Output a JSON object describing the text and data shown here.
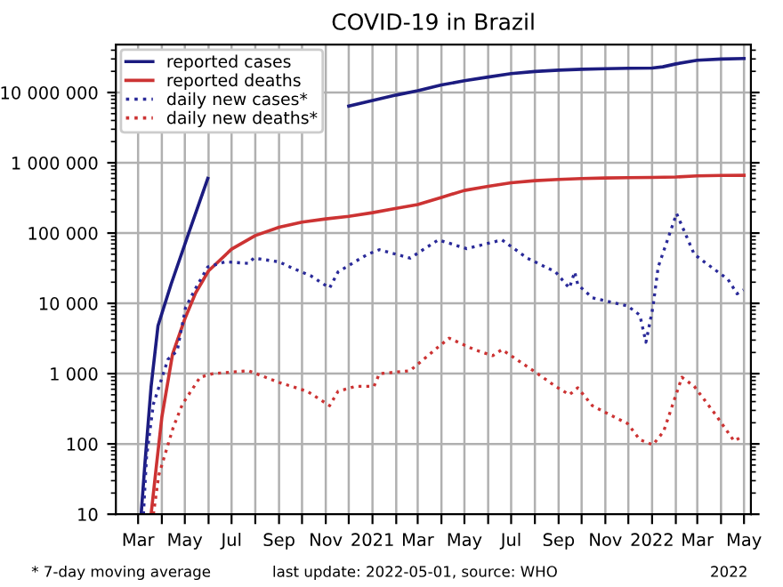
{
  "chart_data": {
    "type": "line",
    "title": "COVID-19 in Brazil",
    "log": "y",
    "grid": true,
    "legend": "top left",
    "xlim": [
      "2020-02-01",
      "2022-05-10"
    ],
    "xticks": [
      {
        "value": "2020-03-01",
        "label": "Mar"
      },
      {
        "value": "2020-04-01",
        "label": null
      },
      {
        "value": "2020-05-01",
        "label": "May"
      },
      {
        "value": "2020-06-01",
        "label": null
      },
      {
        "value": "2020-07-01",
        "label": "Jul"
      },
      {
        "value": "2020-08-01",
        "label": null
      },
      {
        "value": "2020-09-01",
        "label": "Sep"
      },
      {
        "value": "2020-10-01",
        "label": null
      },
      {
        "value": "2020-11-01",
        "label": "Nov"
      },
      {
        "value": "2020-12-01",
        "label": null
      },
      {
        "value": "2021-01-01",
        "label": "2021"
      },
      {
        "value": "2021-02-01",
        "label": null
      },
      {
        "value": "2021-03-01",
        "label": "Mar"
      },
      {
        "value": "2021-04-01",
        "label": null
      },
      {
        "value": "2021-05-01",
        "label": "May"
      },
      {
        "value": "2021-06-01",
        "label": null
      },
      {
        "value": "2021-07-01",
        "label": "Jul"
      },
      {
        "value": "2021-08-01",
        "label": null
      },
      {
        "value": "2021-09-01",
        "label": "Sep"
      },
      {
        "value": "2021-10-01",
        "label": null
      },
      {
        "value": "2021-11-01",
        "label": "Nov"
      },
      {
        "value": "2021-12-01",
        "label": null
      },
      {
        "value": "2022-01-01",
        "label": "2022"
      },
      {
        "value": "2022-02-01",
        "label": null
      },
      {
        "value": "2022-03-01",
        "label": "Mar"
      },
      {
        "value": "2022-04-01",
        "label": null
      },
      {
        "value": "2022-05-01",
        "label": "May"
      }
    ],
    "ylim": [
      10,
      48000000
    ],
    "yticks": [
      10,
      100,
      {
        "value": 1000,
        "label": "1 000"
      },
      {
        "value": 10000,
        "label": "10 000"
      },
      {
        "value": 100000,
        "label": "100 000"
      },
      {
        "value": 1000000,
        "label": "1 000 000"
      },
      {
        "value": 10000000,
        "label": "10 000 000"
      }
    ],
    "annotations": [
      "* 7-day moving average",
      "last update: 2022-05-01, source: WHO",
      "2022"
    ],
    "series": [
      {
        "name": "reported cases",
        "color": "#1c1c80",
        "line_style": "solid",
        "x": [
          "2020-03-05",
          "2020-03-10",
          "2020-03-18",
          "2020-03-27",
          "2020-04-13",
          "2020-05-07",
          "2020-05-31",
          "2020-07-01",
          "2020-08-01",
          "2020-09-01",
          "2020-10-01",
          "2020-11-01",
          "2020-12-01",
          "2021-01-01",
          "2021-02-01",
          "2021-03-01",
          "2021-04-01",
          "2021-05-01",
          "2021-06-01",
          "2021-07-01",
          "2021-08-01",
          "2021-09-01",
          "2021-10-01",
          "2021-11-01",
          "2021-12-01",
          "2022-01-01",
          "2022-01-15",
          "2022-02-01",
          "2022-03-01",
          "2022-04-01",
          "2022-05-01"
        ],
        "values": [
          10,
          54,
          660,
          4800,
          18600,
          107000,
          600000,
          null,
          null,
          null,
          null,
          null,
          6400000,
          7700000,
          9200000,
          10600000,
          12800000,
          14700000,
          16600000,
          18600000,
          19900000,
          20800000,
          21400000,
          21800000,
          22100000,
          22300000,
          23200000,
          25500000,
          28800000,
          29900000,
          30400000
        ]
      },
      {
        "name": "reported deaths",
        "color": "#cc3333",
        "line_style": "solid",
        "x": [
          "2020-03-18",
          "2020-03-25",
          "2020-04-01",
          "2020-04-15",
          "2020-05-01",
          "2020-05-15",
          "2020-06-01",
          "2020-07-01",
          "2020-08-01",
          "2020-09-01",
          "2020-10-01",
          "2020-11-01",
          "2020-12-01",
          "2021-01-01",
          "2021-02-01",
          "2021-03-01",
          "2021-04-01",
          "2021-05-01",
          "2021-06-01",
          "2021-07-01",
          "2021-08-01",
          "2021-09-01",
          "2021-10-01",
          "2021-11-01",
          "2021-12-01",
          "2022-01-01",
          "2022-02-01",
          "2022-03-01",
          "2022-04-01",
          "2022-05-01"
        ],
        "values": [
          10,
          50,
          240,
          1900,
          6000,
          14000,
          29000,
          59000,
          92000,
          121000,
          143000,
          159000,
          173000,
          195000,
          225000,
          255000,
          322000,
          404000,
          462000,
          520000,
          556000,
          580000,
          597000,
          607000,
          615000,
          619000,
          628000,
          650000,
          660000,
          663000
        ]
      },
      {
        "name": "daily new cases*",
        "color": "#2a2a99",
        "line_style": "dotted",
        "x": [
          "2020-03-08",
          "2020-03-12",
          "2020-03-21",
          "2020-04-09",
          "2020-04-21",
          "2020-05-02",
          "2020-05-14",
          "2020-05-31",
          "2020-06-23",
          "2020-07-23",
          "2020-07-30",
          "2020-09-01",
          "2020-09-15",
          "2020-10-13",
          "2020-11-06",
          "2020-11-17",
          "2020-12-17",
          "2020-12-26",
          "2021-01-10",
          "2021-02-19",
          "2021-03-28",
          "2021-05-04",
          "2021-06-19",
          "2021-07-22",
          "2021-08-28",
          "2021-09-15",
          "2021-09-22",
          "2021-09-26",
          "2021-10-15",
          "2021-11-30",
          "2021-12-16",
          "2021-12-24",
          "2022-01-02",
          "2022-01-09",
          "2022-02-02",
          "2022-02-25",
          "2022-03-10",
          "2022-04-10",
          "2022-04-22",
          "2022-04-30"
        ],
        "values": [
          10,
          65,
          370,
          1600,
          2100,
          8700,
          15600,
          33000,
          39000,
          37000,
          44000,
          39000,
          33000,
          24500,
          16500,
          28000,
          44000,
          50000,
          58000,
          44000,
          80000,
          60000,
          80000,
          44000,
          28000,
          16500,
          28000,
          18500,
          12000,
          9200,
          6800,
          2800,
          8700,
          33000,
          190000,
          50000,
          39000,
          22000,
          13700,
          15600
        ]
      },
      {
        "name": "daily new deaths*",
        "color": "#cc3333",
        "line_style": "dotted",
        "x": [
          "2020-03-21",
          "2020-03-28",
          "2020-04-16",
          "2020-04-28",
          "2020-05-21",
          "2020-06-07",
          "2020-07-23",
          "2020-09-01",
          "2020-10-08",
          "2020-11-06",
          "2020-11-17",
          "2020-12-10",
          "2021-01-03",
          "2021-01-10",
          "2021-02-19",
          "2021-03-28",
          "2021-04-11",
          "2021-05-14",
          "2021-06-07",
          "2021-06-19",
          "2021-07-30",
          "2021-08-28",
          "2021-09-15",
          "2021-09-26",
          "2021-10-15",
          "2021-11-07",
          "2021-11-30",
          "2021-12-16",
          "2022-01-02",
          "2022-01-16",
          "2022-02-09",
          "2022-02-25",
          "2022-03-25",
          "2022-04-18",
          "2022-04-30"
        ],
        "values": [
          10,
          36,
          174,
          370,
          890,
          1000,
          1100,
          750,
          560,
          350,
          560,
          660,
          660,
          1000,
          1100,
          2400,
          3200,
          2200,
          1800,
          2200,
          1100,
          660,
          500,
          630,
          350,
          260,
          195,
          115,
          97,
          150,
          890,
          660,
          260,
          110,
          130
        ]
      }
    ]
  }
}
